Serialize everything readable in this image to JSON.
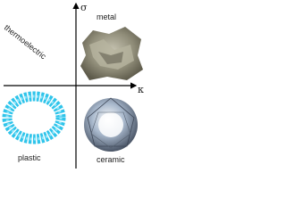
{
  "axes": {
    "y_label": "σ",
    "x_label": "κ"
  },
  "quadrants": [
    {
      "label": "thermoelectric"
    },
    {
      "label": "metal"
    },
    {
      "label": "plastic"
    },
    {
      "label": "ceramic"
    }
  ]
}
